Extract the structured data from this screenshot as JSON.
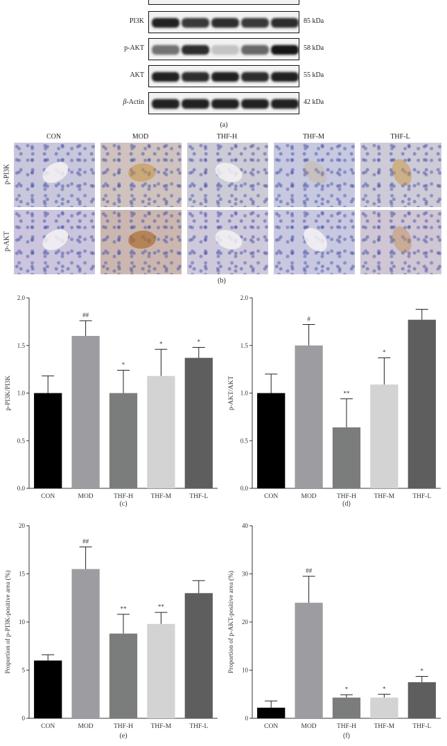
{
  "blot": {
    "rows": [
      {
        "label": "PI3K",
        "kda": "85 kDa",
        "intensity": [
          0.9,
          0.8,
          0.85,
          0.8,
          0.85
        ]
      },
      {
        "label": "p-AKT",
        "kda": "58 kDa",
        "intensity": [
          0.55,
          0.85,
          0.2,
          0.6,
          0.95
        ]
      },
      {
        "label": "AKT",
        "kda": "55 kDa",
        "intensity": [
          0.9,
          0.85,
          0.9,
          0.85,
          0.9
        ]
      },
      {
        "label": "β-Actin",
        "label_prefix": "β",
        "label_suffix": "-Actin",
        "kda": "42 kDa",
        "intensity": [
          0.9,
          0.9,
          0.9,
          0.9,
          0.9
        ]
      }
    ],
    "panel": "(a)"
  },
  "ihc": {
    "groups": [
      "CON",
      "MOD",
      "THF-H",
      "THF-M",
      "THF-L"
    ],
    "rows": [
      "p-PI3K",
      "p-AKT"
    ],
    "panel": "(b)"
  },
  "chart_data": [
    {
      "type": "bar",
      "panel": "(c)",
      "categories": [
        "CON",
        "MOD",
        "THF-H",
        "THF-M",
        "THF-L"
      ],
      "values": [
        1.0,
        1.6,
        1.0,
        1.18,
        1.37
      ],
      "errors": [
        0.18,
        0.16,
        0.24,
        0.28,
        0.11
      ],
      "annotations": [
        "",
        "##",
        "*",
        "*",
        "*"
      ],
      "colors": [
        "#000000",
        "#9c9ca1",
        "#7b7d7d",
        "#d3d3d3",
        "#5e5e5e"
      ],
      "ylabel": "p-PI3K/PI3K",
      "ylim": [
        0,
        2.0
      ],
      "yticks": [
        "0.0",
        "0.5",
        "1.0",
        "1.5",
        "2.0"
      ]
    },
    {
      "type": "bar",
      "panel": "(d)",
      "categories": [
        "CON",
        "MOD",
        "THF-H",
        "THF-M",
        "THF-L"
      ],
      "values": [
        1.0,
        1.5,
        0.64,
        1.09,
        1.77
      ],
      "errors": [
        0.2,
        0.22,
        0.3,
        0.28,
        0.11
      ],
      "annotations": [
        "",
        "#",
        "**",
        "*",
        ""
      ],
      "colors": [
        "#000000",
        "#9c9ca1",
        "#7b7d7d",
        "#d3d3d3",
        "#5e5e5e"
      ],
      "ylabel": "p-AKT/AKT",
      "ylim": [
        0,
        2.0
      ],
      "yticks": [
        "0.0",
        "0.5",
        "1.0",
        "1.5",
        "2.0"
      ]
    },
    {
      "type": "bar",
      "panel": "(e)",
      "categories": [
        "CON",
        "MOD",
        "THF-H",
        "THF-M",
        "THF-L"
      ],
      "values": [
        6.0,
        15.5,
        8.8,
        9.8,
        13.0
      ],
      "errors": [
        0.6,
        2.3,
        2.0,
        1.2,
        1.3
      ],
      "annotations": [
        "",
        "##",
        "**",
        "**",
        ""
      ],
      "colors": [
        "#000000",
        "#9c9ca1",
        "#7b7d7d",
        "#d3d3d3",
        "#5e5e5e"
      ],
      "ylabel": "Proportion of p-PI3K-positive area (%)",
      "ylim": [
        0,
        20
      ],
      "yticks": [
        "0",
        "5",
        "10",
        "15",
        "20"
      ]
    },
    {
      "type": "bar",
      "panel": "(f)",
      "categories": [
        "CON",
        "MOD",
        "THF-H",
        "THF-M",
        "THF-L"
      ],
      "values": [
        2.2,
        24.0,
        4.3,
        4.3,
        7.5
      ],
      "errors": [
        1.4,
        5.5,
        0.6,
        0.7,
        1.2
      ],
      "annotations": [
        "",
        "##",
        "*",
        "*",
        "*"
      ],
      "colors": [
        "#000000",
        "#9c9ca1",
        "#7b7d7d",
        "#d3d3d3",
        "#5e5e5e"
      ],
      "ylabel": "Proportion of p-AKT-positive area (%)",
      "ylim": [
        0,
        40
      ],
      "yticks": [
        "0",
        "10",
        "20",
        "30",
        "40"
      ]
    }
  ]
}
